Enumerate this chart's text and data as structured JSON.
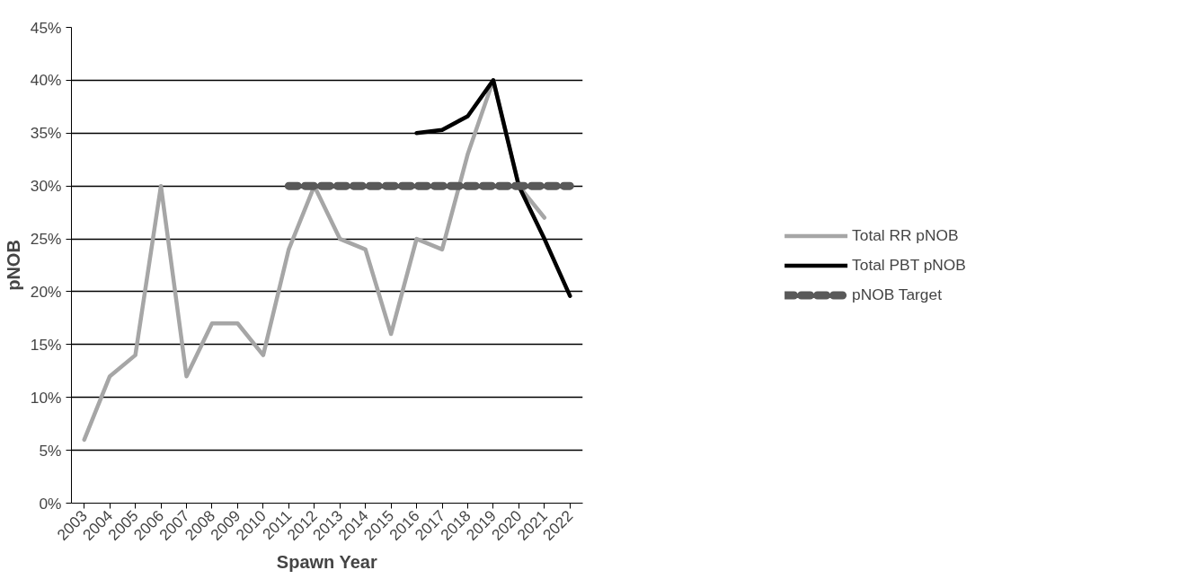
{
  "chart_data": {
    "type": "line",
    "xlabel": "Spawn Year",
    "ylabel": "pNOB",
    "categories": [
      "2003",
      "2004",
      "2005",
      "2006",
      "2007",
      "2008",
      "2009",
      "2010",
      "2011",
      "2012",
      "2013",
      "2014",
      "2015",
      "2016",
      "2017",
      "2018",
      "2019",
      "2020",
      "2021",
      "2022"
    ],
    "series": [
      {
        "name": "Total RR pNOB",
        "color": "#a6a6a6",
        "line_style": "solid",
        "values": [
          6,
          12,
          14,
          30,
          12,
          17,
          17,
          14,
          24,
          30,
          25,
          24,
          16,
          25,
          24,
          33,
          40,
          30,
          27,
          null
        ]
      },
      {
        "name": "Total PBT pNOB",
        "color": "#000000",
        "line_style": "solid",
        "values": [
          null,
          null,
          null,
          null,
          null,
          null,
          null,
          null,
          null,
          null,
          null,
          null,
          null,
          35,
          35.3,
          36.6,
          40,
          30,
          25,
          19.6
        ]
      },
      {
        "name": "pNOB Target",
        "color": "#595959",
        "line_style": "dashed",
        "values": [
          null,
          null,
          null,
          null,
          null,
          null,
          null,
          null,
          30,
          30,
          30,
          30,
          30,
          30,
          30,
          30,
          30,
          30,
          30,
          30
        ]
      }
    ],
    "ylim": [
      0,
      45
    ],
    "yticks": [
      {
        "value": 0,
        "label": "0%"
      },
      {
        "value": 5,
        "label": "5%"
      },
      {
        "value": 10,
        "label": "10%"
      },
      {
        "value": 15,
        "label": "15%"
      },
      {
        "value": 20,
        "label": "20%"
      },
      {
        "value": 25,
        "label": "25%"
      },
      {
        "value": 30,
        "label": "30%"
      },
      {
        "value": 35,
        "label": "35%"
      },
      {
        "value": 40,
        "label": "40%"
      },
      {
        "value": 45,
        "label": "45%"
      }
    ],
    "grid": "y",
    "legend": "right",
    "marker": "none"
  }
}
